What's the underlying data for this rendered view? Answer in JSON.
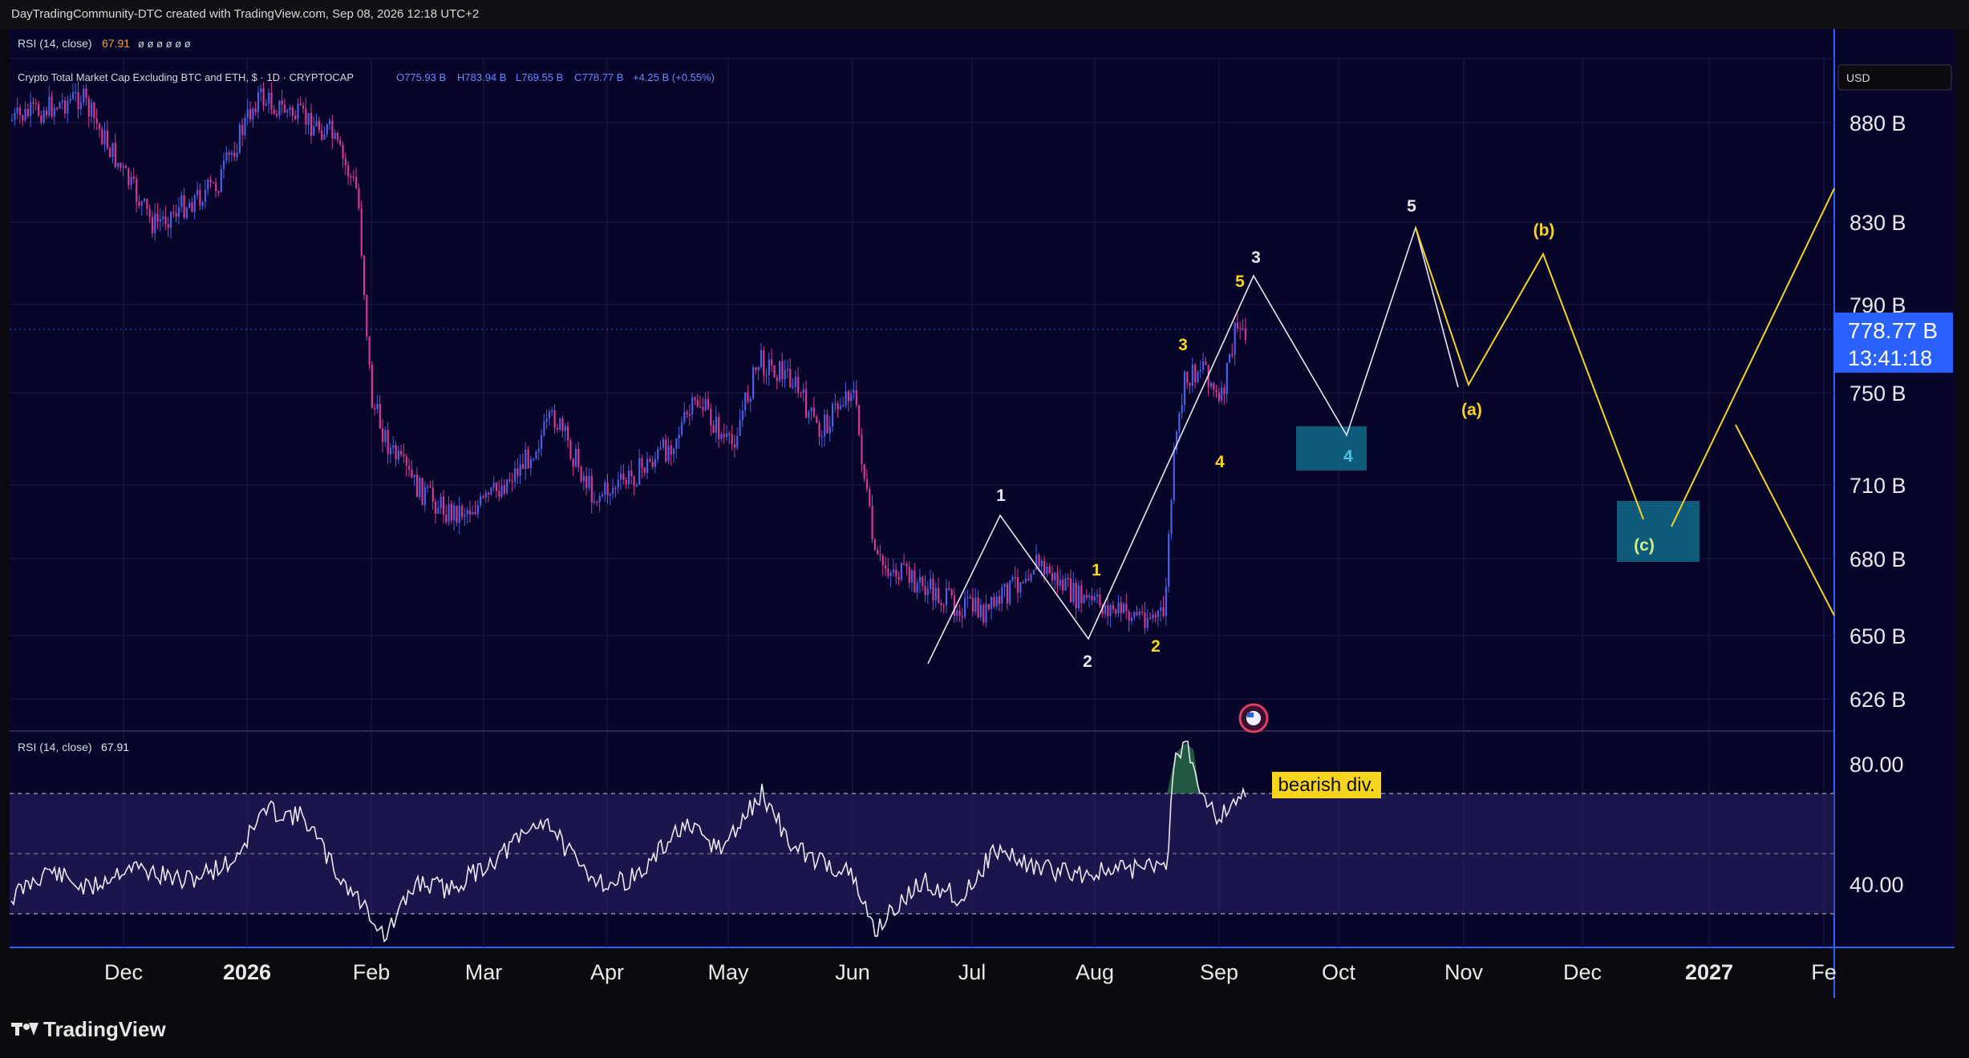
{
  "header": {
    "credit": "DayTradingCommunity-DTC created with TradingView.com, Sep 08, 2026 12:18 UTC+2",
    "rsi_top_label": "RSI (14, close)",
    "rsi_top_value": "67.91",
    "rsi_top_placeholders": "ø ø ø ø ø ø",
    "symbol_title": "Crypto Total Market Cap Excluding BTC and ETH, $ · 1D · CRYPTOCAP",
    "ohlc": {
      "open": "O775.93 B",
      "high": "H783.94 B",
      "low": "L769.55 B",
      "close": "C778.77 B",
      "change": "+4.25 B (+0.55%)"
    }
  },
  "rsi_pane": {
    "label": "RSI (14, close)",
    "value": "67.91",
    "upper": 80,
    "lower": 40,
    "upper_label": "80.00",
    "lower_label": "40.00"
  },
  "currency_button": "USD",
  "price_tag": {
    "price": "778.77 B",
    "countdown": "13:41:18"
  },
  "annotation_bearish": "bearish div.",
  "colors": {
    "background": "#07062a",
    "bull": "#4b5fe0",
    "bear": "#d43a8f",
    "wave_white": "#e8e8f0",
    "wave_yellow": "#f5d327",
    "target_box": "#0e5a7a",
    "price_tag": "#2962ff",
    "rsi_band": "#2a2468",
    "label_bg": "#f7d51d"
  },
  "chart_data": {
    "type": "line",
    "title": "Crypto Total Market Cap Excluding BTC and ETH",
    "interval": "1D",
    "x_axis_ticks": [
      "Dec",
      "2026",
      "Feb",
      "Mar",
      "Apr",
      "May",
      "Jun",
      "Jul",
      "Aug",
      "Sep",
      "Oct",
      "Nov",
      "Dec",
      "2027",
      "Fe"
    ],
    "y_axis_ticks": [
      "880 B",
      "830 B",
      "790 B",
      "750 B",
      "710 B",
      "680 B",
      "650 B",
      "626 B"
    ],
    "y_tick_values": [
      880,
      830,
      790,
      750,
      710,
      680,
      650,
      626
    ],
    "price_scale": "log",
    "price_anchors": [
      {
        "month": "2025-12",
        "price": 880
      },
      {
        "month": "2026-01",
        "price": 845
      },
      {
        "month": "2026-01",
        "price": 890
      },
      {
        "month": "2026-02",
        "price": 650
      },
      {
        "month": "2026-03",
        "price": 690
      },
      {
        "month": "2026-04",
        "price": 705
      },
      {
        "month": "2026-05",
        "price": 785
      },
      {
        "month": "2026-06",
        "price": 650
      },
      {
        "month": "2026-07",
        "price": 695
      },
      {
        "month": "2026-08",
        "price": 658
      },
      {
        "month": "2026-08",
        "price": 755
      },
      {
        "month": "2026-09",
        "price": 779
      }
    ],
    "elliott_white": [
      {
        "label": "1",
        "date": "2026-07-12",
        "price": 700
      },
      {
        "label": "2",
        "date": "2026-08-05",
        "price": 652
      },
      {
        "label": "3",
        "date": "2026-09-11",
        "price": 806
      },
      {
        "label": "4",
        "date": "2026-10-12",
        "price": 730
      },
      {
        "label": "5",
        "date": "2026-10-30",
        "price": 825
      }
    ],
    "elliott_yellow_subwaves": [
      {
        "label": "1",
        "price": 675
      },
      {
        "label": "2",
        "price": 655
      },
      {
        "label": "3",
        "price": 770
      },
      {
        "label": "4",
        "price": 740
      },
      {
        "label": "5",
        "price": 796
      }
    ],
    "corrective": [
      {
        "label": "(a)",
        "date": "2026-11-15",
        "price": 754
      },
      {
        "label": "(b)",
        "date": "2026-11-30",
        "price": 813
      },
      {
        "label": "(c)",
        "date": "2026-12-22",
        "price": 693
      }
    ],
    "targets": [
      {
        "label": "4",
        "price_low": 724,
        "price_high": 739
      },
      {
        "label": "(c)",
        "price_low": 681,
        "price_high": 703
      }
    ],
    "rsi": {
      "period": 14,
      "last": 67.91,
      "levels": [
        80,
        40
      ],
      "bearish_divergence": true
    }
  }
}
